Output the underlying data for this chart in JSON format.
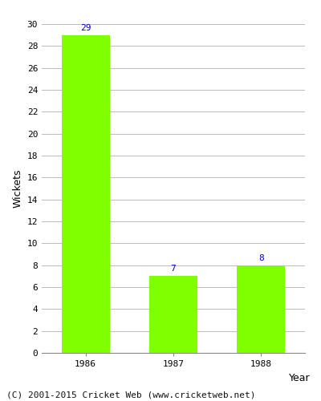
{
  "categories": [
    "1986",
    "1987",
    "1988"
  ],
  "values": [
    29,
    7,
    8
  ],
  "bar_color": "#7FFF00",
  "bar_edge_color": "#7FFF00",
  "value_label_color": "#0000CC",
  "xlabel": "Year",
  "ylabel": "Wickets",
  "ylim": [
    0,
    30
  ],
  "yticks": [
    0,
    2,
    4,
    6,
    8,
    10,
    12,
    14,
    16,
    18,
    20,
    22,
    24,
    26,
    28,
    30
  ],
  "grid_color": "#bbbbbb",
  "background_color": "#ffffff",
  "footer_text": "(C) 2001-2015 Cricket Web (www.cricketweb.net)",
  "value_fontsize": 8,
  "axis_label_fontsize": 9,
  "tick_fontsize": 8,
  "footer_fontsize": 8,
  "bar_width": 0.55
}
